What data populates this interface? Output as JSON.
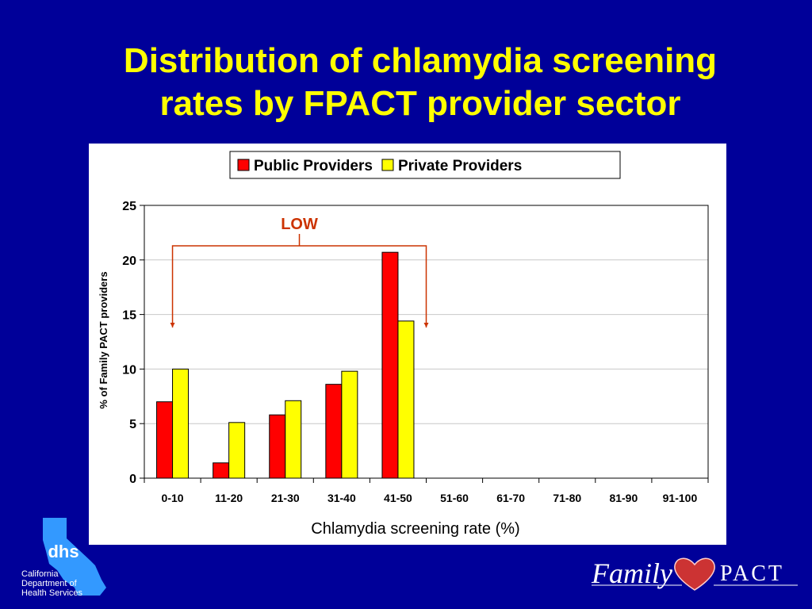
{
  "slide": {
    "title_lines": [
      "Distribution of chlamydia screening",
      "rates by FPACT provider sector"
    ],
    "background_color": "#000099",
    "title_color": "#ffff00"
  },
  "chart_data": {
    "type": "bar",
    "categories": [
      "0-10",
      "11-20",
      "21-30",
      "31-40",
      "41-50",
      "51-60",
      "61-70",
      "71-80",
      "81-90",
      "91-100"
    ],
    "series": [
      {
        "name": "Public Providers",
        "color": "#ff0000",
        "values": [
          7.0,
          1.4,
          5.8,
          8.6,
          20.7,
          0,
          0,
          0,
          0,
          0
        ]
      },
      {
        "name": "Private Providers",
        "color": "#ffff00",
        "values": [
          10.0,
          5.1,
          7.1,
          9.8,
          14.4,
          0,
          0,
          0,
          0,
          0
        ]
      }
    ],
    "xlabel": "Chlamydia screening rate (%)",
    "ylabel": "% of Family PACT providers",
    "ylim": [
      0,
      25
    ],
    "yticks": [
      0,
      5,
      10,
      15,
      20,
      25
    ],
    "grid": true,
    "legend_position": "top",
    "annotation": {
      "text": "LOW",
      "color": "#cc3300",
      "bracket_from_category": "0-10",
      "bracket_to_category": "41-50"
    }
  },
  "logos": {
    "dhs": {
      "abbrev": "dhs",
      "lines": [
        "California",
        "Department of",
        "Health Services"
      ],
      "color": "#3399ff"
    },
    "family_pact": {
      "word1": "Family",
      "word2": "PACT",
      "heart_color": "#cc3333"
    }
  }
}
